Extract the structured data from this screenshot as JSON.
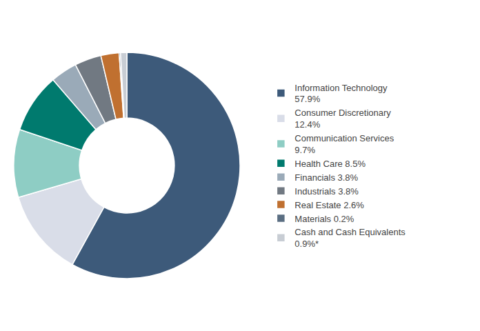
{
  "chart_data": {
    "type": "donut",
    "categories": [
      "Information Technology\n57.9%",
      "Consumer Discretionary\n12.4%",
      "Communication Services\n9.7%",
      "Health Care 8.5%",
      "Financials 3.8%",
      "Industrials 3.8%",
      "Real Estate 2.6%",
      "Materials 0.2%",
      "Cash and Cash Equivalents\n0.9%*"
    ],
    "values": [
      57.9,
      12.4,
      9.7,
      8.5,
      3.8,
      3.8,
      2.6,
      0.2,
      0.9
    ],
    "colors": [
      "#3d5a7a",
      "#d9dde8",
      "#8ecdc4",
      "#007a6e",
      "#9aaab8",
      "#717982",
      "#c07030",
      "#5a6e82",
      "#c8cdd4"
    ],
    "legend": "right"
  }
}
